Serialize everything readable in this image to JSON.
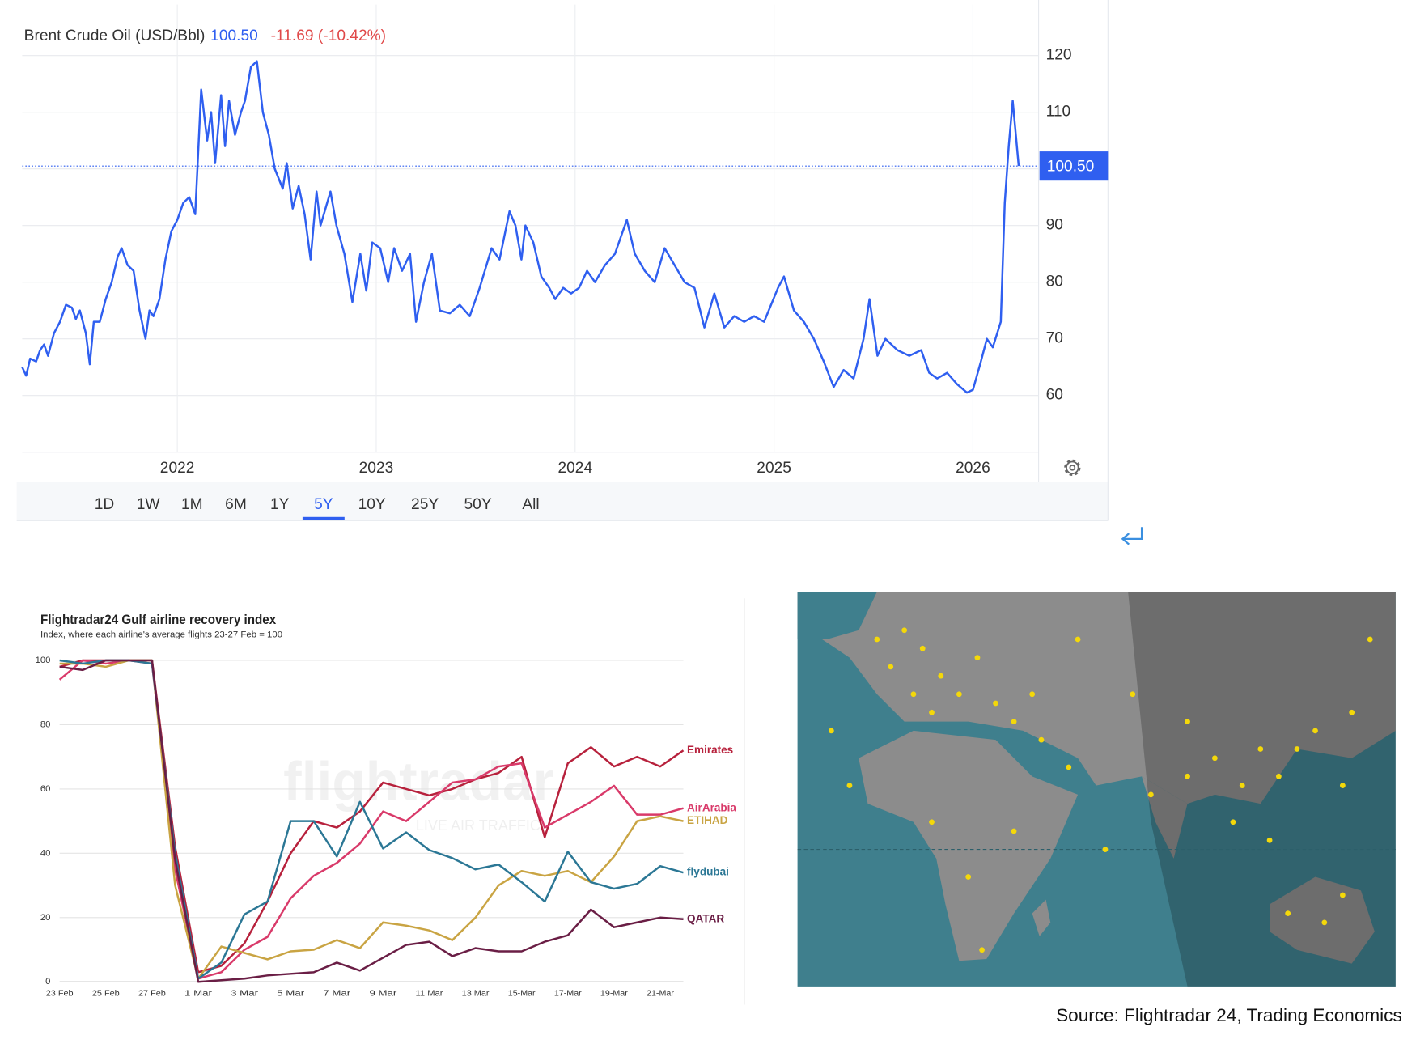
{
  "chart_data": [
    {
      "type": "line",
      "title": "Brent Crude Oil (USD/Bbl)",
      "last_price": "100.50",
      "change": "-11.69 (-10.42%)",
      "color": "#2f5ff0",
      "x": [
        2021.22,
        2021.24,
        2021.26,
        2021.29,
        2021.31,
        2021.33,
        2021.35,
        2021.38,
        2021.41,
        2021.44,
        2021.47,
        2021.49,
        2021.51,
        2021.54,
        2021.56,
        2021.58,
        2021.61,
        2021.64,
        2021.67,
        2021.7,
        2021.72,
        2021.75,
        2021.78,
        2021.81,
        2021.84,
        2021.86,
        2021.88,
        2021.91,
        2021.94,
        2021.97,
        2022.0,
        2022.03,
        2022.06,
        2022.09,
        2022.12,
        2022.15,
        2022.17,
        2022.19,
        2022.22,
        2022.24,
        2022.26,
        2022.29,
        2022.32,
        2022.34,
        2022.37,
        2022.4,
        2022.43,
        2022.46,
        2022.49,
        2022.53,
        2022.55,
        2022.58,
        2022.61,
        2022.64,
        2022.67,
        2022.7,
        2022.72,
        2022.77,
        2022.8,
        2022.84,
        2022.88,
        2022.92,
        2022.95,
        2022.98,
        2023.02,
        2023.06,
        2023.09,
        2023.13,
        2023.17,
        2023.2,
        2023.24,
        2023.28,
        2023.32,
        2023.37,
        2023.42,
        2023.47,
        2023.52,
        2023.58,
        2023.62,
        2023.67,
        2023.7,
        2023.73,
        2023.75,
        2023.79,
        2023.83,
        2023.87,
        2023.9,
        2023.94,
        2023.98,
        2024.02,
        2024.06,
        2024.1,
        2024.15,
        2024.2,
        2024.23,
        2024.26,
        2024.3,
        2024.35,
        2024.4,
        2024.45,
        2024.5,
        2024.55,
        2024.6,
        2024.65,
        2024.7,
        2024.75,
        2024.8,
        2024.85,
        2024.9,
        2024.95,
        2025.02,
        2025.05,
        2025.1,
        2025.15,
        2025.2,
        2025.25,
        2025.3,
        2025.35,
        2025.4,
        2025.45,
        2025.48,
        2025.52,
        2025.56,
        2025.62,
        2025.68,
        2025.74,
        2025.78,
        2025.82,
        2025.87,
        2025.92,
        2025.97,
        2026.0,
        2026.04,
        2026.07,
        2026.1,
        2026.14,
        2026.16,
        2026.18,
        2026.2,
        2026.23
      ],
      "values": [
        65,
        63.5,
        66.5,
        66,
        68,
        69,
        67,
        71,
        73,
        76,
        75.5,
        73.5,
        75,
        71,
        65.5,
        73,
        73,
        77,
        80,
        84.5,
        86,
        83,
        82,
        75,
        70,
        75,
        74,
        77,
        84,
        89,
        91,
        94,
        95,
        92,
        114,
        105,
        110,
        101,
        113,
        104,
        112,
        106,
        110,
        112,
        118,
        119,
        110,
        106,
        100,
        96.5,
        101,
        93,
        97,
        92,
        84,
        96,
        90,
        96,
        90,
        85,
        76.5,
        85,
        78.5,
        87,
        86,
        80,
        86,
        82,
        85,
        73,
        80,
        85,
        75,
        74.5,
        76,
        74,
        79,
        86,
        84,
        92.5,
        90,
        84,
        90,
        87,
        81,
        79,
        77,
        79,
        78,
        79,
        82,
        80,
        83,
        85,
        88,
        91,
        85,
        82,
        80,
        86,
        83,
        80,
        79,
        72,
        78,
        72,
        74,
        73,
        74,
        73,
        79,
        81,
        75,
        73,
        70,
        66,
        61.5,
        64.5,
        63,
        70,
        77,
        67,
        70,
        68,
        67,
        68,
        64,
        63,
        64,
        62,
        60.5,
        61,
        66,
        70,
        68.5,
        73,
        94,
        104,
        112,
        100.5
      ],
      "xlim": [
        2021.22,
        2026.33
      ],
      "xticks": [
        2022,
        2023,
        2024,
        2025,
        2026
      ],
      "ylim": [
        50,
        129
      ],
      "yticks": [
        60,
        70,
        80,
        90,
        100,
        110,
        120
      ],
      "grid": true,
      "range_buttons": [
        "1D",
        "1W",
        "1M",
        "6M",
        "1Y",
        "5Y",
        "10Y",
        "25Y",
        "50Y",
        "All"
      ],
      "selected_range": "5Y"
    },
    {
      "type": "line",
      "title": "Flightradar24 Gulf airline recovery index",
      "subtitle": "Index, where each airline's average flights 23-27 Feb = 100",
      "watermark": "flightradar",
      "watermark_sub": "LIVE AIR TRAFFIC",
      "categories": [
        "23 Feb",
        null,
        "25 Feb",
        null,
        "27 Feb",
        null,
        "1 Mar",
        null,
        "3 Mar",
        null,
        "5 Mar",
        null,
        "7 Mar",
        null,
        "9 Mar",
        null,
        "11 Mar",
        null,
        "13 Mar",
        null,
        "15-Mar",
        null,
        "17-Mar",
        null,
        "19-Mar",
        null,
        "21-Mar",
        null
      ],
      "series": [
        {
          "name": "Emirates",
          "color": "#b7213c",
          "values": [
            98,
            100,
            100,
            100,
            100,
            42,
            3,
            5,
            12,
            25,
            40,
            50,
            48,
            53,
            62,
            60,
            58,
            60,
            63,
            65,
            70,
            45,
            68,
            73,
            67,
            70,
            67,
            72
          ]
        },
        {
          "name": "AirArabia",
          "color": "#d93a6a",
          "values": [
            94,
            100,
            99,
            100,
            99,
            35,
            1,
            3,
            10,
            14,
            26,
            33,
            37,
            43,
            53,
            50,
            56,
            62,
            63,
            67,
            68,
            48,
            52,
            56,
            61,
            52,
            52,
            54
          ]
        },
        {
          "name": "ETIHAD",
          "color": "#c9a443",
          "values": [
            99,
            99,
            98,
            100,
            100,
            30,
            1,
            11,
            9,
            7,
            9.5,
            10,
            13,
            10.5,
            18.5,
            17.5,
            16,
            13,
            20,
            30,
            34.5,
            33,
            34.5,
            31,
            39,
            50,
            51.5,
            50
          ]
        },
        {
          "name": "flydubai",
          "color": "#2b7795",
          "values": [
            100,
            99,
            100,
            100,
            99,
            40,
            1,
            6,
            21,
            25,
            50,
            50,
            39,
            56,
            41.5,
            46.5,
            41,
            38.5,
            35,
            36.5,
            31,
            25,
            40.5,
            31,
            29,
            30.5,
            36,
            34
          ]
        },
        {
          "name": "QATAR",
          "color": "#6a1e45",
          "values": [
            98,
            97,
            100,
            100,
            100,
            38,
            0,
            0.5,
            1,
            2,
            2.5,
            3,
            6,
            3.5,
            7.5,
            11.5,
            12.5,
            8,
            10.5,
            9.5,
            9.5,
            12.5,
            14.5,
            22.5,
            17,
            18.5,
            20,
            19.5
          ]
        }
      ],
      "ylim": [
        0,
        100
      ],
      "yticks": [
        0,
        20,
        40,
        60,
        80,
        100
      ],
      "grid": true
    }
  ],
  "source": "Source: Flightradar 24, Trading Economics"
}
